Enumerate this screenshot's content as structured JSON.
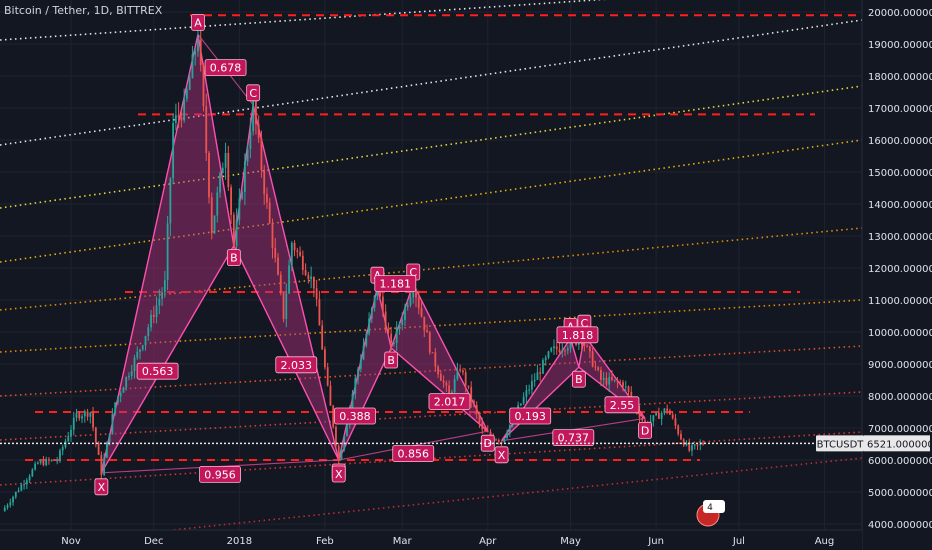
{
  "title": "Bitcoin / Tether, 1D, BITTREX",
  "price_badge": {
    "ticker": "BTCUSDT",
    "value": "6521.00000000"
  },
  "event_badge": {
    "count": "4"
  },
  "colors": {
    "bg": "#131722",
    "up": "#26a69a",
    "down": "#ef5350",
    "pattern_fill": "#b3307f",
    "pattern_stroke": "#ff4fb0",
    "hline": "#ff1f1f",
    "white_line": "#e8e8e8"
  },
  "chart_data": {
    "type": "candlestick",
    "title": "Bitcoin / Tether, 1D, BITTREX",
    "x_axis": {
      "ticks": [
        {
          "label": "Nov",
          "date": "2017-11-01"
        },
        {
          "label": "Dec",
          "date": "2017-12-01"
        },
        {
          "label": "2018",
          "date": "2018-01-01"
        },
        {
          "label": "Feb",
          "date": "2018-02-01"
        },
        {
          "label": "Mar",
          "date": "2018-03-01"
        },
        {
          "label": "Apr",
          "date": "2018-04-01"
        },
        {
          "label": "May",
          "date": "2018-05-01"
        },
        {
          "label": "Jun",
          "date": "2018-06-01"
        },
        {
          "label": "Jul",
          "date": "2018-07-01"
        },
        {
          "label": "Aug",
          "date": "2018-08-01"
        }
      ],
      "range": [
        "2017-10-07",
        "2018-08-31"
      ]
    },
    "y_axis": {
      "ticks": [
        "20000.00000000",
        "19000.00000000",
        "18000.00000000",
        "17000.00000000",
        "16000.00000000",
        "15000.00000000",
        "14000.00000000",
        "13000.00000000",
        "12000.00000000",
        "11000.00000000",
        "10000.00000000",
        "9000.00000000",
        "8000.00000000",
        "7000.00000000",
        "6000.00000000",
        "5000.00000000",
        "4000.00000000"
      ],
      "range": [
        3800,
        20500
      ]
    },
    "price_path": [
      [
        "2017-10-07",
        4400
      ],
      [
        "2017-10-20",
        5900
      ],
      [
        "2017-10-27",
        6000
      ],
      [
        "2017-11-03",
        7400
      ],
      [
        "2017-11-08",
        7500
      ],
      [
        "2017-11-12",
        5600
      ],
      [
        "2017-11-17",
        7800
      ],
      [
        "2017-11-26",
        9500
      ],
      [
        "2017-12-05",
        11500
      ],
      [
        "2017-12-08",
        16500
      ],
      [
        "2017-12-12",
        17000
      ],
      [
        "2017-12-17",
        19300
      ],
      [
        "2017-12-22",
        13200
      ],
      [
        "2017-12-27",
        15800
      ],
      [
        "2017-12-30",
        12700
      ],
      [
        "2018-01-06",
        17100
      ],
      [
        "2018-01-10",
        14500
      ],
      [
        "2018-01-17",
        10500
      ],
      [
        "2018-01-20",
        12800
      ],
      [
        "2018-01-28",
        11500
      ],
      [
        "2018-02-02",
        8200
      ],
      [
        "2018-02-06",
        6000
      ],
      [
        "2018-02-12",
        8500
      ],
      [
        "2018-02-20",
        11400
      ],
      [
        "2018-02-25",
        9500
      ],
      [
        "2018-03-05",
        11500
      ],
      [
        "2018-03-12",
        9200
      ],
      [
        "2018-03-18",
        8000
      ],
      [
        "2018-03-22",
        8900
      ],
      [
        "2018-03-30",
        6900
      ],
      [
        "2018-04-06",
        6600
      ],
      [
        "2018-04-15",
        8100
      ],
      [
        "2018-04-24",
        9400
      ],
      [
        "2018-05-05",
        9800
      ],
      [
        "2018-05-12",
        8500
      ],
      [
        "2018-05-20",
        8400
      ],
      [
        "2018-05-28",
        7100
      ],
      [
        "2018-06-05",
        7600
      ],
      [
        "2018-06-10",
        6700
      ],
      [
        "2018-06-13",
        6300
      ],
      [
        "2018-06-18",
        6521
      ]
    ],
    "harmonic_patterns": [
      {
        "points": {
          "X": [
            "2017-11-12",
            5600
          ],
          "A": [
            "2017-12-17",
            19300
          ],
          "B": [
            "2017-12-30",
            12700
          ],
          "C": [
            "2018-01-06",
            17100
          ],
          "D": [
            "2018-02-06",
            6000
          ]
        },
        "ratios": {
          "XB": "0.563",
          "AC": "0.678",
          "BD": "2.033",
          "XD": "0.956"
        }
      },
      {
        "points": {
          "X": [
            "2018-02-06",
            6000
          ],
          "A": [
            "2018-02-20",
            11400
          ],
          "B": [
            "2018-02-25",
            9500
          ],
          "C": [
            "2018-03-05",
            11500
          ],
          "D": [
            "2018-04-01",
            6900
          ]
        },
        "ratios": {
          "XB": "0.388",
          "AC": "1.181",
          "BD": "2.017",
          "XD": "0.856"
        }
      },
      {
        "points": {
          "X": [
            "2018-04-06",
            6600
          ],
          "A": [
            "2018-05-01",
            9800
          ],
          "B": [
            "2018-05-04",
            8900
          ],
          "C": [
            "2018-05-06",
            9900
          ],
          "D": [
            "2018-05-28",
            7300
          ]
        },
        "ratios": {
          "XB": "0.193",
          "AC": "1.818",
          "BD": "2.55",
          "XD": "0.737"
        }
      }
    ],
    "horizontal_levels": [
      19900,
      16800,
      11250,
      7500,
      6000
    ],
    "last_price": 6521,
    "grid": true
  }
}
